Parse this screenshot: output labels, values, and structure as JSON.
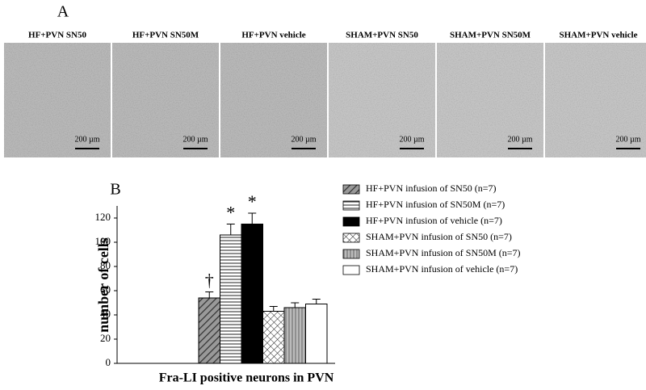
{
  "panel_a": {
    "label": "A",
    "images": [
      {
        "caption": "HF+PVN SN50",
        "scale_bar": "200 µm"
      },
      {
        "caption": "HF+PVN SN50M",
        "scale_bar": "200 µm"
      },
      {
        "caption": "HF+PVN vehicle",
        "scale_bar": "200 µm"
      },
      {
        "caption": "SHAM+PVN SN50",
        "scale_bar": "200 µm"
      },
      {
        "caption": "SHAM+PVN SN50M",
        "scale_bar": "200 µm"
      },
      {
        "caption": "SHAM+PVN vehicle",
        "scale_bar": "200 µm"
      }
    ]
  },
  "panel_b": {
    "label": "B"
  },
  "chart_data": {
    "type": "bar",
    "ylabel": "number of cells",
    "xlabel": "Fra-LI positive neurons in PVN",
    "categories": [
      null
    ],
    "ylim": [
      0,
      130
    ],
    "yticks": [
      0,
      20,
      40,
      60,
      80,
      100,
      120
    ],
    "series": [
      {
        "name": "HF+PVN infusion of SN50 (n=7)",
        "color": "#555555",
        "pattern": "diagonal",
        "values": [
          54
        ],
        "errors": [
          5
        ],
        "marker": "†"
      },
      {
        "name": "HF+PVN infusion of SN50M (n=7)",
        "color": "#222222",
        "pattern": "horizontal",
        "values": [
          106
        ],
        "errors": [
          9
        ],
        "marker": "*"
      },
      {
        "name": "HF+PVN infusion of vehicle (n=7)",
        "color": "#000000",
        "pattern": "solid",
        "values": [
          115
        ],
        "errors": [
          9
        ],
        "marker": "*"
      },
      {
        "name": "SHAM+PVN infusion of SN50 (n=7)",
        "color": "#222222",
        "pattern": "crosshatch",
        "values": [
          43
        ],
        "errors": [
          4
        ]
      },
      {
        "name": "SHAM+PVN infusion of SN50M (n=7)",
        "color": "#888888",
        "pattern": "vertical",
        "values": [
          46
        ],
        "errors": [
          4
        ]
      },
      {
        "name": "SHAM+PVN infusion of vehicle (n=7)",
        "color": "#ffffff",
        "pattern": "none",
        "values": [
          49
        ],
        "errors": [
          4
        ]
      }
    ]
  }
}
